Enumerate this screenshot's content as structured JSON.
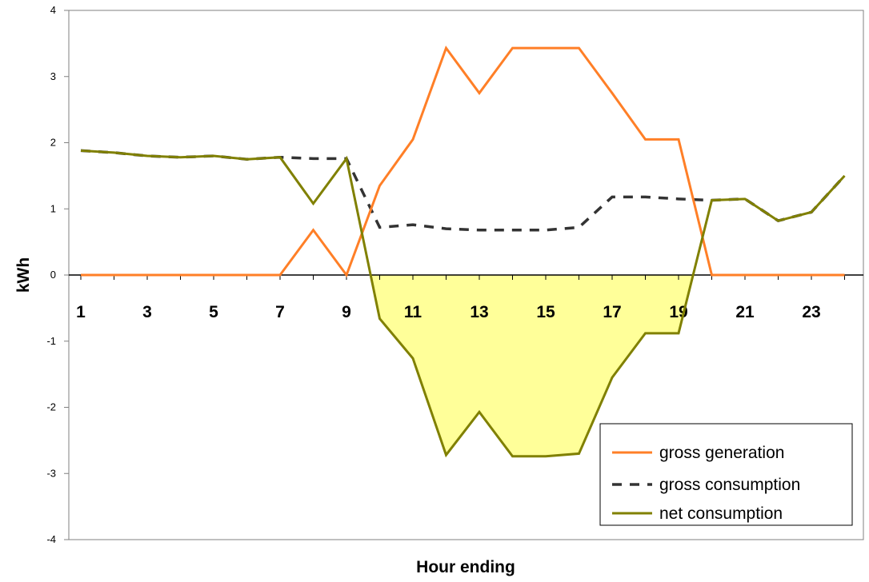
{
  "chart_data": {
    "type": "line",
    "title": "",
    "xlabel": "Hour ending",
    "ylabel": "kWh",
    "ylim": [
      -4,
      4
    ],
    "yticks": [
      "4",
      "3",
      "2",
      "1",
      "0",
      "-1",
      "-2",
      "-3",
      "-4"
    ],
    "xticks": [
      "1",
      "3",
      "5",
      "7",
      "9",
      "11",
      "13",
      "15",
      "17",
      "19",
      "21",
      "23"
    ],
    "x": [
      1,
      2,
      3,
      4,
      5,
      6,
      7,
      8,
      9,
      10,
      11,
      12,
      13,
      14,
      15,
      16,
      17,
      18,
      19,
      20,
      21,
      22,
      23,
      24
    ],
    "grid": false,
    "legend_position": "bottom-right",
    "shaded_area": {
      "series": "net consumption",
      "below": 0,
      "color": "#ffff99"
    },
    "series": [
      {
        "name": "gross generation",
        "color": "#ff7f27",
        "style": "solid",
        "values": [
          0,
          0,
          0,
          0,
          0,
          0,
          0,
          0.68,
          0,
          1.35,
          2.05,
          3.43,
          2.75,
          3.43,
          3.43,
          3.43,
          2.75,
          2.05,
          2.05,
          0,
          0,
          0,
          0,
          0
        ]
      },
      {
        "name": "gross consumption",
        "color": "#333333",
        "style": "dashed",
        "values": [
          1.88,
          1.85,
          1.8,
          1.78,
          1.8,
          1.75,
          1.78,
          1.76,
          1.76,
          0.72,
          0.76,
          0.7,
          0.68,
          0.68,
          0.68,
          0.72,
          1.18,
          1.18,
          1.15,
          1.13,
          1.15,
          0.82,
          0.95,
          1.5
        ]
      },
      {
        "name": "net consumption",
        "color": "#808000",
        "style": "solid",
        "values": [
          1.88,
          1.85,
          1.8,
          1.78,
          1.8,
          1.75,
          1.78,
          1.08,
          1.76,
          -0.66,
          -1.26,
          -2.72,
          -2.07,
          -2.74,
          -2.74,
          -2.7,
          -1.55,
          -0.88,
          -0.88,
          1.13,
          1.15,
          0.82,
          0.95,
          1.5
        ]
      }
    ]
  }
}
